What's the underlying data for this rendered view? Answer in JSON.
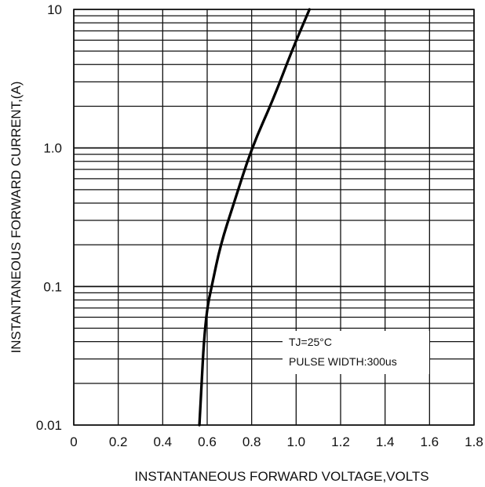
{
  "chart_data": {
    "type": "line",
    "title": "",
    "xlabel": "INSTANTANEOUS FORWARD VOLTAGE,VOLTS",
    "ylabel": "INSTANTANEOUS FORWARD CURRENT,(A)",
    "x_scale": "linear",
    "y_scale": "log",
    "xlim": [
      0,
      1.8
    ],
    "ylim": [
      0.01,
      10
    ],
    "x_ticks": [
      "0",
      "0.2",
      "0.4",
      "0.6",
      "0.8",
      "1.0",
      "1.2",
      "1.4",
      "1.6",
      "1.8"
    ],
    "y_ticks": [
      "0.01",
      "0.1",
      "1.0",
      "10"
    ],
    "grid": true,
    "annotations": [
      {
        "text": "TJ=25°C"
      },
      {
        "text": "PULSE WIDTH:300us"
      }
    ],
    "series": [
      {
        "name": "",
        "points": [
          {
            "x": 0.565,
            "y": 0.01
          },
          {
            "x": 0.575,
            "y": 0.02
          },
          {
            "x": 0.585,
            "y": 0.04
          },
          {
            "x": 0.6,
            "y": 0.07
          },
          {
            "x": 0.62,
            "y": 0.1
          },
          {
            "x": 0.66,
            "y": 0.2
          },
          {
            "x": 0.72,
            "y": 0.4
          },
          {
            "x": 0.8,
            "y": 1.0
          },
          {
            "x": 0.9,
            "y": 2.3
          },
          {
            "x": 0.98,
            "y": 5.0
          },
          {
            "x": 1.06,
            "y": 10.0
          }
        ]
      }
    ],
    "colors": {
      "line": "#000000",
      "grid": "#111111",
      "text": "#111111",
      "background": "#ffffff"
    }
  }
}
